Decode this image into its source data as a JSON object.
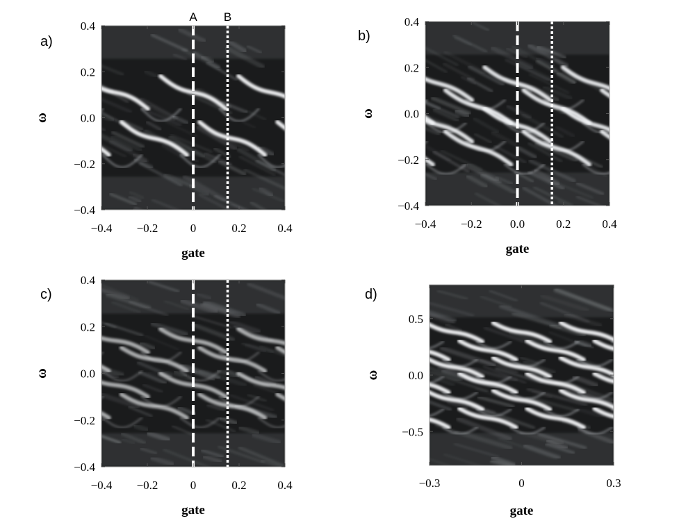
{
  "chart_data": [
    {
      "type": "heatmap",
      "panel_label": "a)",
      "xlabel": "gate",
      "ylabel": "ω",
      "xlim": [
        -0.4,
        0.4
      ],
      "ylim": [
        -0.4,
        0.4
      ],
      "xticks": [
        -0.4,
        -0.2,
        0,
        0.2,
        0.4
      ],
      "xtick_labels": [
        "−0.4",
        "−0.2",
        "0",
        "0.2",
        "0.4"
      ],
      "yticks": [
        -0.4,
        -0.2,
        0.0,
        0.2,
        0.4
      ],
      "ytick_labels": [
        "−0.4",
        "−0.2",
        "0.0",
        "0.2",
        "0.4"
      ],
      "markers": [
        {
          "x": 0.0,
          "style": "dashed",
          "label": "A"
        },
        {
          "x": 0.15,
          "style": "dotted",
          "label": "B"
        }
      ],
      "bands": {
        "period": 0.34,
        "slope": -0.5,
        "levels": [
          0.11,
          -0.09
        ],
        "amp": 0.045,
        "bright": 0.95
      }
    },
    {
      "type": "heatmap",
      "panel_label": "b)",
      "xlabel": "gate",
      "ylabel": "ω",
      "xlim": [
        -0.4,
        0.4
      ],
      "ylim": [
        -0.4,
        0.4
      ],
      "xticks": [
        -0.4,
        -0.2,
        0.0,
        0.2,
        0.4
      ],
      "xtick_labels": [
        "−0.4",
        "−0.2",
        "0.0",
        "0.2",
        "0.4"
      ],
      "yticks": [
        -0.4,
        -0.2,
        0.0,
        0.2,
        0.4
      ],
      "ytick_labels": [
        "−0.4",
        "−0.2",
        "0.0",
        "0.2",
        "0.4"
      ],
      "markers": [
        {
          "x": 0.0,
          "style": "dashed",
          "label": ""
        },
        {
          "x": 0.15,
          "style": "dotted",
          "label": ""
        }
      ],
      "bands": {
        "period": 0.34,
        "slope": -0.5,
        "levels": [
          0.13,
          0.03,
          -0.05,
          -0.15
        ],
        "amp": 0.035,
        "bright": 0.9
      }
    },
    {
      "type": "heatmap",
      "panel_label": "c)",
      "xlabel": "gate",
      "ylabel": "ω",
      "xlim": [
        -0.4,
        0.4
      ],
      "ylim": [
        -0.4,
        0.4
      ],
      "xticks": [
        -0.4,
        -0.2,
        0,
        0.2,
        0.4
      ],
      "xtick_labels": [
        "−0.4",
        "−0.2",
        "0",
        "0.2",
        "0.4"
      ],
      "yticks": [
        -0.4,
        -0.2,
        0.0,
        0.2,
        0.4
      ],
      "ytick_labels": [
        "−0.4",
        "−0.2",
        "0.0",
        "0.2",
        "0.4"
      ],
      "markers": [
        {
          "x": 0.0,
          "style": "dashed",
          "label": ""
        },
        {
          "x": 0.15,
          "style": "dotted",
          "label": ""
        }
      ],
      "bands": {
        "period": 0.34,
        "slope": -0.35,
        "levels": [
          0.14,
          0.06,
          -0.05,
          -0.14
        ],
        "amp": 0.035,
        "bright": 0.65
      }
    },
    {
      "type": "heatmap",
      "panel_label": "d)",
      "xlabel": "gate",
      "ylabel": "ω",
      "xlim": [
        -0.3,
        0.3
      ],
      "ylim": [
        -0.8,
        0.8
      ],
      "xticks": [
        -0.3,
        0,
        0.3
      ],
      "xtick_labels": [
        "−0.3",
        "0",
        "0.3"
      ],
      "yticks": [
        -0.5,
        0.0,
        0.5
      ],
      "ytick_labels": [
        "−0.5",
        "0.0",
        "0.5"
      ],
      "markers": [],
      "bands": {
        "period": 0.22,
        "slope": -0.9,
        "levels": [
          0.38,
          0.22,
          0.07,
          -0.07,
          -0.22,
          -0.38
        ],
        "amp": 0.05,
        "bright": 0.95
      }
    }
  ]
}
